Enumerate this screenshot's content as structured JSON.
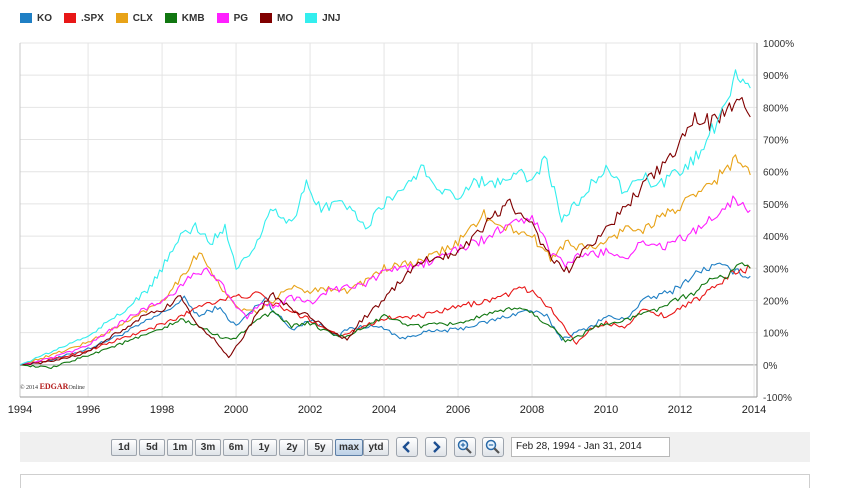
{
  "chart_data": {
    "type": "line",
    "title": "",
    "xlabel": "",
    "ylabel": "",
    "x_ticks": [
      "1994",
      "1996",
      "1998",
      "2000",
      "2002",
      "2004",
      "2006",
      "2008",
      "2010",
      "2012",
      "2014"
    ],
    "y_ticks": [
      "1000%",
      "900%",
      "800%",
      "700%",
      "600%",
      "500%",
      "400%",
      "300%",
      "200%",
      "100%",
      "0%",
      "-100%"
    ],
    "xlim": [
      1994.16,
      2014.08
    ],
    "ylim": [
      -100,
      1000
    ],
    "grid": true,
    "legend_position": "top-left",
    "series": [
      {
        "name": "KO",
        "color": "#1f7fc4",
        "points": [
          [
            1994.16,
            0
          ],
          [
            1995,
            15
          ],
          [
            1996,
            50
          ],
          [
            1997,
            100
          ],
          [
            1998,
            160
          ],
          [
            1998.6,
            205
          ],
          [
            1999,
            150
          ],
          [
            1999.5,
            180
          ],
          [
            2000,
            120
          ],
          [
            2000.8,
            210
          ],
          [
            2001,
            170
          ],
          [
            2001.5,
            110
          ],
          [
            2002,
            140
          ],
          [
            2002.8,
            90
          ],
          [
            2003,
            110
          ],
          [
            2003.5,
            120
          ],
          [
            2004,
            115
          ],
          [
            2004.5,
            80
          ],
          [
            2005,
            100
          ],
          [
            2006,
            110
          ],
          [
            2007,
            140
          ],
          [
            2007.9,
            170
          ],
          [
            2008.4,
            150
          ],
          [
            2008.8,
            80
          ],
          [
            2009.2,
            100
          ],
          [
            2009.6,
            120
          ],
          [
            2010,
            150
          ],
          [
            2010.5,
            140
          ],
          [
            2011,
            200
          ],
          [
            2011.8,
            230
          ],
          [
            2012.5,
            290
          ],
          [
            2013,
            310
          ],
          [
            2013.5,
            290
          ],
          [
            2013.9,
            275
          ]
        ]
      },
      {
        "name": ".SPX",
        "color": "#e81717",
        "points": [
          [
            1994.16,
            0
          ],
          [
            1995,
            15
          ],
          [
            1996,
            45
          ],
          [
            1997,
            85
          ],
          [
            1998,
            125
          ],
          [
            1998.6,
            155
          ],
          [
            1999,
            185
          ],
          [
            1999.5,
            200
          ],
          [
            2000,
            210
          ],
          [
            2000.6,
            220
          ],
          [
            2001,
            190
          ],
          [
            2001.6,
            160
          ],
          [
            2002,
            140
          ],
          [
            2002.8,
            90
          ],
          [
            2003,
            100
          ],
          [
            2003.6,
            125
          ],
          [
            2004,
            145
          ],
          [
            2005,
            150
          ],
          [
            2006,
            180
          ],
          [
            2007,
            205
          ],
          [
            2007.8,
            240
          ],
          [
            2008.3,
            200
          ],
          [
            2008.8,
            130
          ],
          [
            2009.2,
            65
          ],
          [
            2009.5,
            105
          ],
          [
            2010,
            130
          ],
          [
            2010.5,
            120
          ],
          [
            2011,
            170
          ],
          [
            2011.7,
            150
          ],
          [
            2012,
            180
          ],
          [
            2012.6,
            210
          ],
          [
            2013,
            250
          ],
          [
            2013.5,
            290
          ],
          [
            2013.9,
            300
          ]
        ]
      },
      {
        "name": "CLX",
        "color": "#e8a318",
        "points": [
          [
            1994.16,
            0
          ],
          [
            1995,
            30
          ],
          [
            1996,
            70
          ],
          [
            1997,
            130
          ],
          [
            1998,
            200
          ],
          [
            1998.5,
            270
          ],
          [
            1999,
            350
          ],
          [
            1999.3,
            300
          ],
          [
            1999.7,
            220
          ],
          [
            2000,
            180
          ],
          [
            2000.5,
            160
          ],
          [
            2001,
            200
          ],
          [
            2001.5,
            240
          ],
          [
            2002,
            230
          ],
          [
            2002.5,
            240
          ],
          [
            2003,
            230
          ],
          [
            2003.5,
            260
          ],
          [
            2004,
            300
          ],
          [
            2005,
            320
          ],
          [
            2006,
            380
          ],
          [
            2006.7,
            470
          ],
          [
            2007,
            430
          ],
          [
            2007.5,
            420
          ],
          [
            2008,
            400
          ],
          [
            2008.5,
            330
          ],
          [
            2008.9,
            380
          ],
          [
            2009.5,
            360
          ],
          [
            2010,
            380
          ],
          [
            2010.6,
            430
          ],
          [
            2011,
            420
          ],
          [
            2011.6,
            470
          ],
          [
            2012,
            490
          ],
          [
            2012.5,
            530
          ],
          [
            2013,
            580
          ],
          [
            2013.5,
            640
          ],
          [
            2013.9,
            590
          ]
        ]
      },
      {
        "name": "KMB",
        "color": "#117711",
        "points": [
          [
            1994.16,
            0
          ],
          [
            1995,
            -10
          ],
          [
            1996,
            30
          ],
          [
            1997,
            70
          ],
          [
            1998,
            110
          ],
          [
            1998.5,
            140
          ],
          [
            1999,
            120
          ],
          [
            1999.5,
            90
          ],
          [
            2000,
            80
          ],
          [
            2000.5,
            140
          ],
          [
            2001,
            160
          ],
          [
            2001.5,
            120
          ],
          [
            2002,
            130
          ],
          [
            2002.5,
            100
          ],
          [
            2003,
            85
          ],
          [
            2003.5,
            120
          ],
          [
            2004,
            150
          ],
          [
            2004.5,
            130
          ],
          [
            2005,
            120
          ],
          [
            2006,
            130
          ],
          [
            2007,
            160
          ],
          [
            2007.6,
            180
          ],
          [
            2008,
            160
          ],
          [
            2008.5,
            120
          ],
          [
            2008.9,
            75
          ],
          [
            2009.3,
            90
          ],
          [
            2009.8,
            125
          ],
          [
            2010.3,
            130
          ],
          [
            2010.8,
            150
          ],
          [
            2011.3,
            170
          ],
          [
            2011.8,
            195
          ],
          [
            2012.3,
            220
          ],
          [
            2012.8,
            260
          ],
          [
            2013.3,
            280
          ],
          [
            2013.6,
            315
          ],
          [
            2013.9,
            300
          ]
        ]
      },
      {
        "name": "PG",
        "color": "#ff1fff",
        "points": [
          [
            1994.16,
            0
          ],
          [
            1995,
            20
          ],
          [
            1996,
            60
          ],
          [
            1997,
            140
          ],
          [
            1997.8,
            190
          ],
          [
            1998.3,
            220
          ],
          [
            1998.7,
            270
          ],
          [
            1999.2,
            300
          ],
          [
            1999.6,
            250
          ],
          [
            2000,
            180
          ],
          [
            2000.3,
            150
          ],
          [
            2000.7,
            200
          ],
          [
            2001,
            180
          ],
          [
            2001.5,
            210
          ],
          [
            2002,
            190
          ],
          [
            2002.5,
            230
          ],
          [
            2003,
            240
          ],
          [
            2003.5,
            250
          ],
          [
            2004,
            290
          ],
          [
            2004.5,
            300
          ],
          [
            2005,
            310
          ],
          [
            2006,
            360
          ],
          [
            2006.7,
            390
          ],
          [
            2007,
            410
          ],
          [
            2007.5,
            440
          ],
          [
            2008,
            460
          ],
          [
            2008.5,
            350
          ],
          [
            2008.9,
            310
          ],
          [
            2009.3,
            340
          ],
          [
            2010,
            350
          ],
          [
            2010.6,
            340
          ],
          [
            2011,
            380
          ],
          [
            2011.6,
            370
          ],
          [
            2012,
            390
          ],
          [
            2012.5,
            420
          ],
          [
            2013,
            470
          ],
          [
            2013.5,
            520
          ],
          [
            2013.9,
            480
          ]
        ]
      },
      {
        "name": "MO",
        "color": "#800000",
        "points": [
          [
            1994.16,
            0
          ],
          [
            1995,
            10
          ],
          [
            1996,
            40
          ],
          [
            1996.8,
            100
          ],
          [
            1997.5,
            150
          ],
          [
            1998,
            170
          ],
          [
            1998.5,
            210
          ],
          [
            1999,
            120
          ],
          [
            1999.4,
            80
          ],
          [
            1999.8,
            20
          ],
          [
            2000.2,
            90
          ],
          [
            2000.7,
            180
          ],
          [
            2001,
            220
          ],
          [
            2001.5,
            170
          ],
          [
            2002,
            150
          ],
          [
            2002.6,
            100
          ],
          [
            2003,
            80
          ],
          [
            2003.4,
            140
          ],
          [
            2004,
            200
          ],
          [
            2004.5,
            270
          ],
          [
            2005,
            320
          ],
          [
            2005.6,
            340
          ],
          [
            2006,
            350
          ],
          [
            2006.6,
            420
          ],
          [
            2007,
            470
          ],
          [
            2007.4,
            500
          ],
          [
            2008,
            430
          ],
          [
            2008.6,
            320
          ],
          [
            2009,
            290
          ],
          [
            2009.5,
            370
          ],
          [
            2010,
            420
          ],
          [
            2010.6,
            500
          ],
          [
            2011,
            560
          ],
          [
            2011.6,
            620
          ],
          [
            2012,
            680
          ],
          [
            2012.4,
            780
          ],
          [
            2012.8,
            750
          ],
          [
            2013.2,
            780
          ],
          [
            2013.6,
            850
          ],
          [
            2013.9,
            770
          ]
        ]
      },
      {
        "name": "JNJ",
        "color": "#33eeee",
        "points": [
          [
            1994.16,
            0
          ],
          [
            1995,
            40
          ],
          [
            1996,
            90
          ],
          [
            1997,
            170
          ],
          [
            1997.6,
            230
          ],
          [
            1998,
            300
          ],
          [
            1998.5,
            400
          ],
          [
            1998.9,
            430
          ],
          [
            1999.3,
            380
          ],
          [
            1999.7,
            430
          ],
          [
            2000,
            300
          ],
          [
            2000.5,
            370
          ],
          [
            2001,
            490
          ],
          [
            2001.5,
            440
          ],
          [
            2001.9,
            560
          ],
          [
            2002.3,
            480
          ],
          [
            2002.8,
            510
          ],
          [
            2003,
            490
          ],
          [
            2003.5,
            430
          ],
          [
            2004,
            500
          ],
          [
            2004.6,
            560
          ],
          [
            2005,
            610
          ],
          [
            2005.5,
            550
          ],
          [
            2006,
            520
          ],
          [
            2006.5,
            570
          ],
          [
            2007,
            560
          ],
          [
            2007.5,
            600
          ],
          [
            2008,
            580
          ],
          [
            2008.4,
            640
          ],
          [
            2008.8,
            440
          ],
          [
            2009.2,
            500
          ],
          [
            2009.6,
            560
          ],
          [
            2010,
            610
          ],
          [
            2010.5,
            540
          ],
          [
            2011,
            580
          ],
          [
            2011.5,
            560
          ],
          [
            2012,
            600
          ],
          [
            2012.5,
            650
          ],
          [
            2013,
            760
          ],
          [
            2013.5,
            900
          ],
          [
            2013.9,
            860
          ]
        ]
      }
    ]
  },
  "watermark": {
    "copyright": "© 2014",
    "brand": "EDGAR",
    "suffix": "Online"
  },
  "toolbar": {
    "ranges": [
      "1d",
      "5d",
      "1m",
      "3m",
      "6m",
      "1y",
      "2y",
      "5y",
      "max",
      "ytd"
    ],
    "active_range": "max",
    "date_range": "Feb 28, 1994 - Jan 31, 2014"
  }
}
